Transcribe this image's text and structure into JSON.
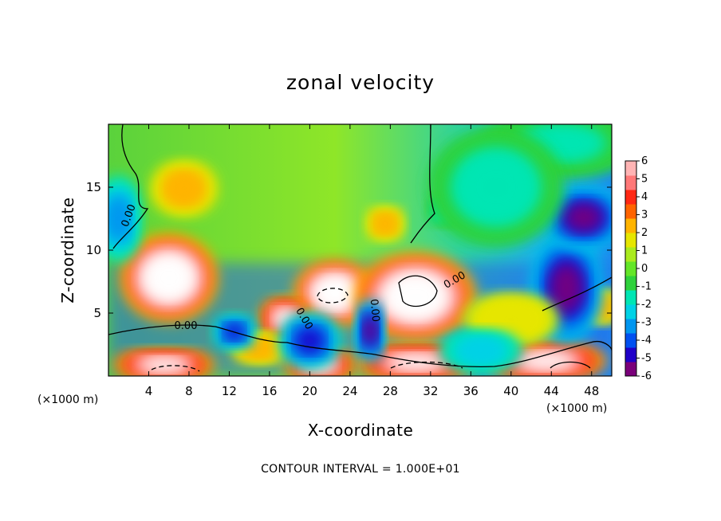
{
  "chart_data": {
    "type": "heatmap",
    "title": "zonal velocity",
    "xlabel": "X-coordinate",
    "ylabel": "Z-coordinate",
    "x_unit": "(×1000 m)",
    "z_unit": "(×1000 m)",
    "xlim": [
      0,
      50
    ],
    "ylim": [
      0,
      20
    ],
    "x_ticks": [
      4,
      8,
      12,
      16,
      20,
      24,
      28,
      32,
      36,
      40,
      44,
      48
    ],
    "y_ticks": [
      5,
      10,
      15
    ],
    "colorbar": {
      "min": -6,
      "max": 6,
      "ticks": [
        6,
        5,
        4,
        3,
        2,
        1,
        0,
        -1,
        -2,
        -3,
        -4,
        -5,
        -6
      ],
      "colors": [
        "#7a007a",
        "#1f00c8",
        "#0050f0",
        "#0096f0",
        "#00d2e6",
        "#00e6b4",
        "#2fd23c",
        "#64e628",
        "#aaeb1e",
        "#e6e600",
        "#ffb400",
        "#ff6400",
        "#ff2814",
        "#ff7878",
        "#ffb4b4"
      ]
    },
    "contour_interval": "CONTOUR INTERVAL = 1.000E+01",
    "contour_labels": [
      "0.00",
      "0.00",
      "0.00",
      "0.00",
      "0.00"
    ],
    "features": [
      {
        "x": 6.0,
        "z": 7.8,
        "rx": 3.6,
        "rz": 2.6,
        "v": 9
      },
      {
        "x": 22.5,
        "z": 6.6,
        "rx": 3.0,
        "rz": 1.9,
        "v": 9
      },
      {
        "x": 30.5,
        "z": 6.3,
        "rx": 4.5,
        "rz": 2.6,
        "v": 9
      },
      {
        "x": 17.5,
        "z": 4.6,
        "rx": 1.8,
        "rz": 1.2,
        "v": 8
      },
      {
        "x": 43.5,
        "z": 1.2,
        "rx": 4.5,
        "rz": 1.1,
        "v": 8
      },
      {
        "x": 30.5,
        "z": 1.1,
        "rx": 4.5,
        "rz": 1.0,
        "v": 8
      },
      {
        "x": 5.5,
        "z": 0.9,
        "rx": 3.8,
        "rz": 0.9,
        "v": 8
      },
      {
        "x": 21.0,
        "z": 0.9,
        "rx": 2.6,
        "rz": 0.9,
        "v": 8
      },
      {
        "x": 7.5,
        "z": 14.9,
        "rx": 2.4,
        "rz": 1.6,
        "v": 3
      },
      {
        "x": 27.5,
        "z": 12.1,
        "rx": 1.4,
        "rz": 1.0,
        "v": 3
      },
      {
        "x": 33.5,
        "z": 13.2,
        "rx": 1.3,
        "rz": 0.9,
        "v": -2
      },
      {
        "x": 15.0,
        "z": 2.2,
        "rx": 2.0,
        "rz": 0.9,
        "v": 3
      },
      {
        "x": 49.0,
        "z": 5.5,
        "rx": 1.4,
        "rz": 1.0,
        "v": 3
      },
      {
        "x": 20.0,
        "z": 2.8,
        "rx": 2.2,
        "rz": 1.6,
        "v": -5
      },
      {
        "x": 26.0,
        "z": 3.6,
        "rx": 1.0,
        "rz": 1.8,
        "v": -6
      },
      {
        "x": 12.5,
        "z": 3.5,
        "rx": 1.5,
        "rz": 1.0,
        "v": -5
      },
      {
        "x": 45.5,
        "z": 7.0,
        "rx": 2.6,
        "rz": 3.2,
        "v": -6
      },
      {
        "x": 47.2,
        "z": 12.6,
        "rx": 3.0,
        "rz": 1.8,
        "v": -6
      },
      {
        "x": 45.0,
        "z": 18.5,
        "rx": 6.0,
        "rz": 2.0,
        "v": -1.5
      },
      {
        "x": 38.5,
        "z": 15.0,
        "rx": 5.0,
        "rz": 3.5,
        "v": -1.6
      },
      {
        "x": 1.0,
        "z": 12.5,
        "rx": 1.6,
        "rz": 2.5,
        "v": -3.5
      },
      {
        "x": 40.0,
        "z": 4.5,
        "rx": 3.5,
        "rz": 1.5,
        "v": 2
      },
      {
        "x": 37.0,
        "z": 2.0,
        "rx": 3.0,
        "rz": 1.2,
        "v": -3
      }
    ]
  }
}
